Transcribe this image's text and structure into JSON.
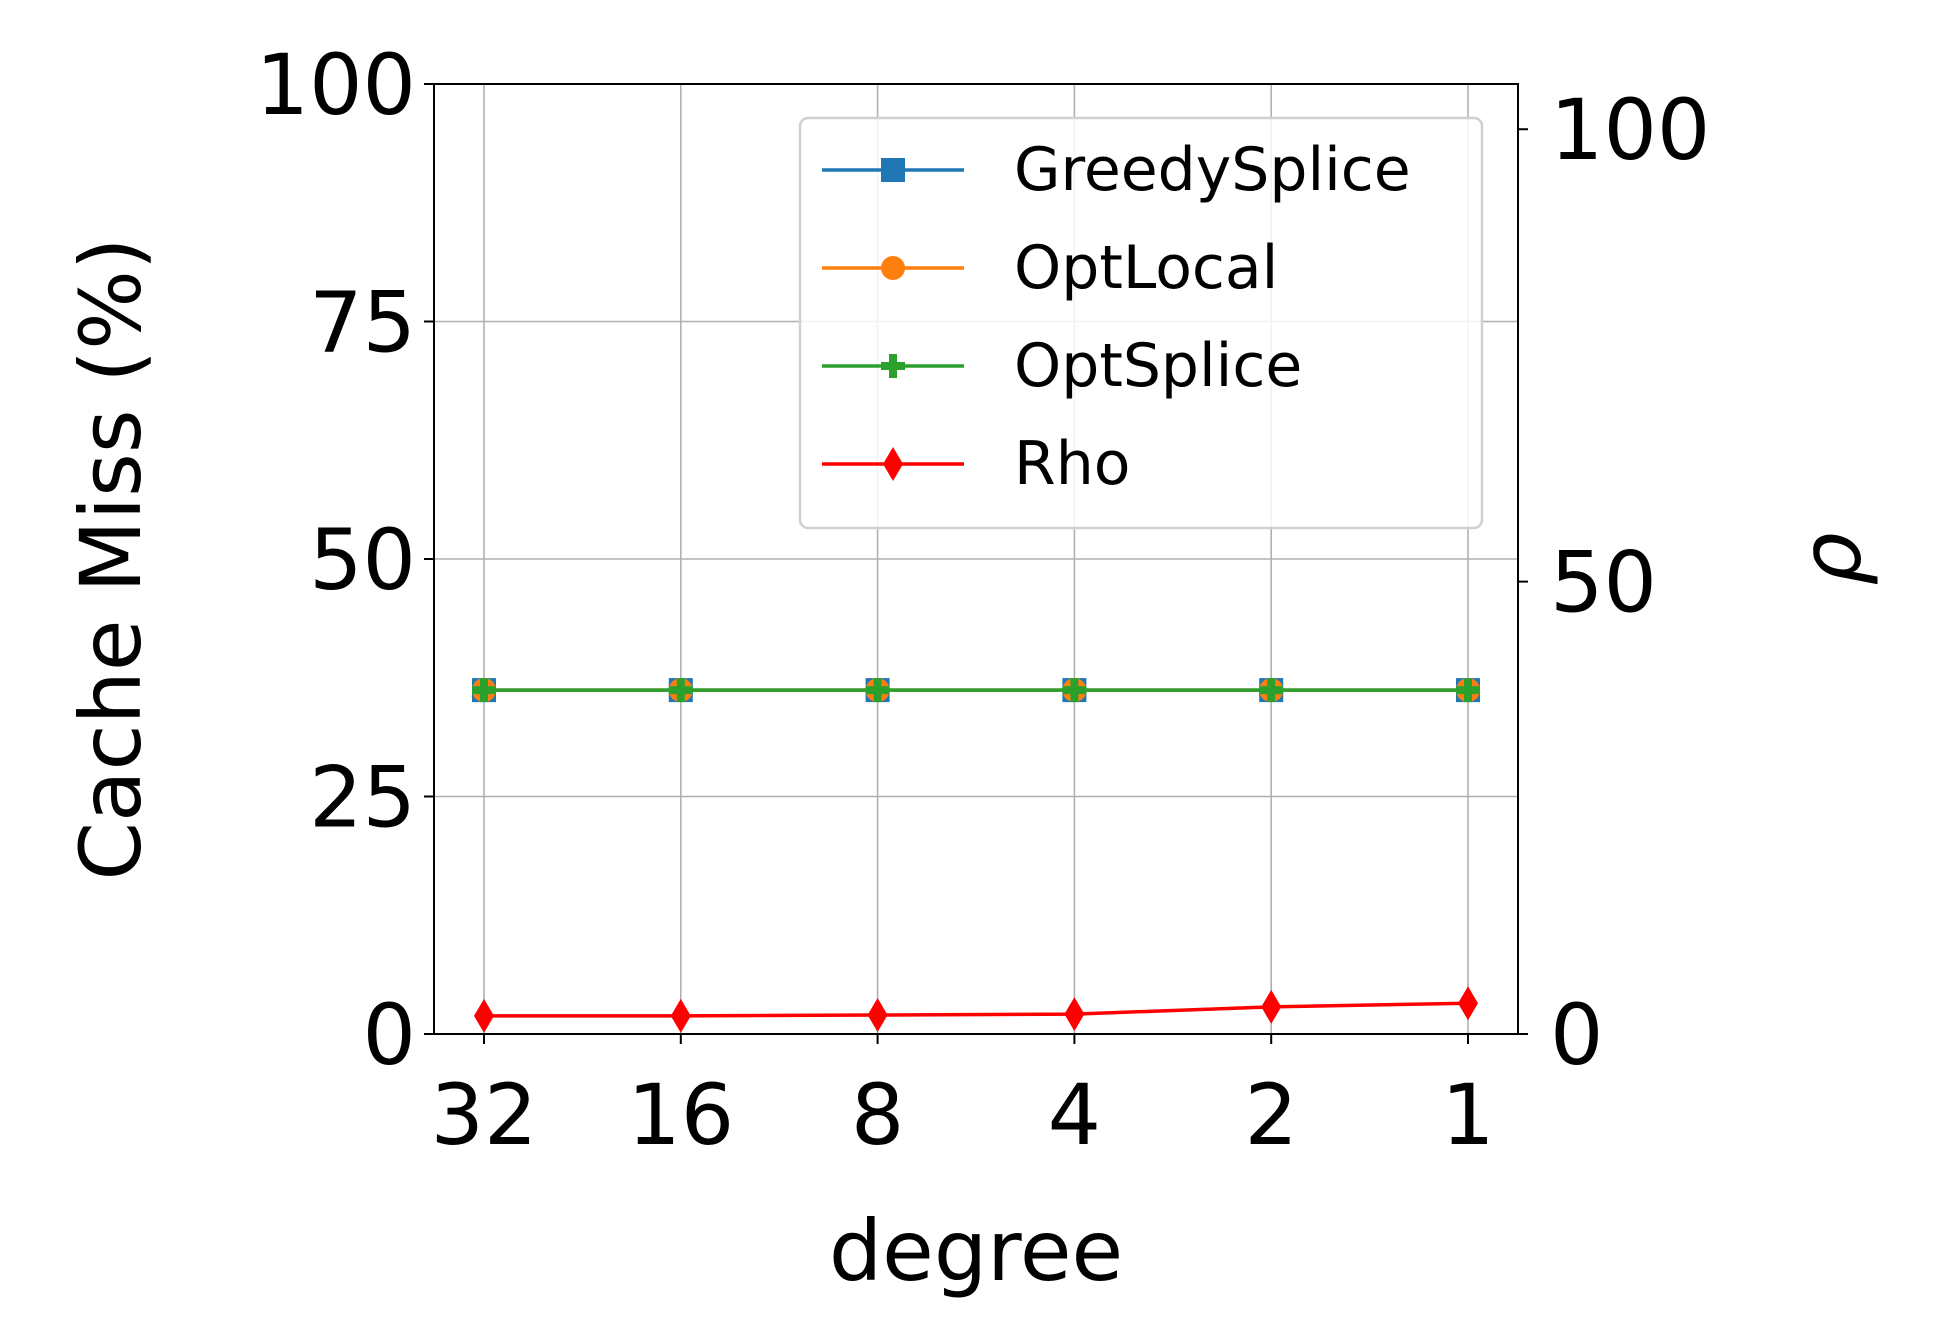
{
  "chart_data": {
    "type": "line",
    "title": "",
    "xlabel": "degree",
    "ylabel": "Cache Miss (%)",
    "y2label": "ρ",
    "categories": [
      "32",
      "16",
      "8",
      "4",
      "2",
      "1"
    ],
    "ylim": [
      0,
      100
    ],
    "y2lim": [
      0,
      105
    ],
    "yticks": [
      "0",
      "25",
      "50",
      "75",
      "100"
    ],
    "y2ticks": [
      "0",
      "50",
      "100"
    ],
    "grid": true,
    "legend_position": "top-right",
    "series": [
      {
        "name": "GreedySplice",
        "axis": "left",
        "color": "#1f77b4",
        "marker": "square",
        "values": [
          36.2,
          36.2,
          36.2,
          36.2,
          36.2,
          36.2
        ]
      },
      {
        "name": "OptLocal",
        "axis": "left",
        "color": "#ff7f0e",
        "marker": "circle",
        "values": [
          36.2,
          36.2,
          36.2,
          36.2,
          36.2,
          36.2
        ]
      },
      {
        "name": "OptSplice",
        "axis": "left",
        "color": "#2ca02c",
        "marker": "plus",
        "values": [
          36.2,
          36.2,
          36.2,
          36.2,
          36.2,
          36.2
        ]
      },
      {
        "name": "Rho",
        "axis": "right",
        "color": "#ff0000",
        "marker": "diamond",
        "values": [
          2.0,
          2.0,
          2.1,
          2.2,
          3.0,
          3.4
        ]
      }
    ]
  }
}
